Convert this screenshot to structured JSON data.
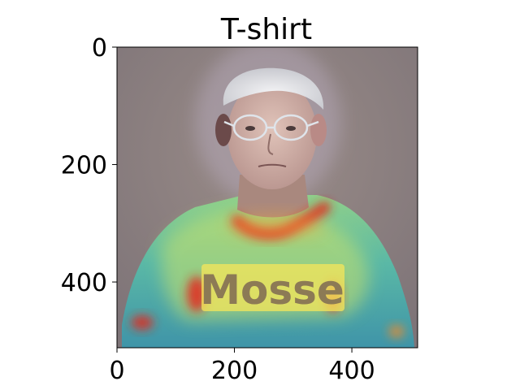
{
  "chart_data": {
    "type": "heatmap",
    "title": "T-shirt",
    "xlabel": "",
    "ylabel": "",
    "xlim": [
      0,
      512
    ],
    "ylim": [
      512,
      0
    ],
    "x_ticks": [
      0,
      200,
      400
    ],
    "y_ticks": [
      0,
      200,
      400
    ],
    "grid": false,
    "overlay_text": "Mosse",
    "colors": {
      "background": "#8d7f7f",
      "shirt": "#4fb0a8",
      "hot": "#e5261a",
      "warm": "#f5e65a"
    }
  }
}
